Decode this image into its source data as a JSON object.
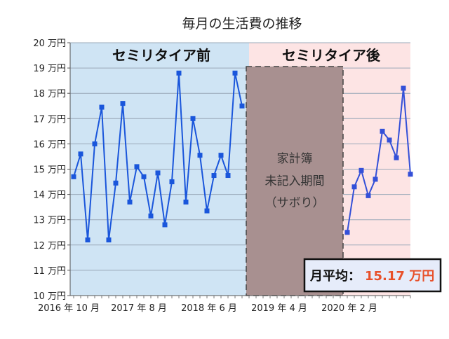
{
  "chart_data": {
    "type": "line",
    "title": "毎月の生活費の推移",
    "ylim": [
      10,
      20
    ],
    "yticks": [
      "10 万円",
      "11 万円",
      "12 万円",
      "13 万円",
      "14 万円",
      "15 万円",
      "16 万円",
      "17 万円",
      "18 万円",
      "19 万円",
      "20 万円"
    ],
    "xticks": [
      "2016 年 10 月",
      "2017 年 8 月",
      "2018 年 6 月",
      "2019 年 4 月",
      "2020 年 2 月"
    ],
    "grid": true,
    "series": [
      {
        "x_start": "2016-10",
        "values": [
          14.7,
          15.6,
          12.2,
          16.0,
          17.45,
          12.2,
          14.45,
          17.6,
          13.7,
          15.1,
          14.7,
          13.15,
          14.85,
          12.8,
          14.5,
          18.8,
          13.7,
          17.0,
          15.55,
          13.35,
          14.75,
          15.55,
          14.75,
          18.8,
          17.5
        ]
      },
      {
        "x_start": "2020-01",
        "values": [
          12.5,
          14.3,
          14.95,
          13.95,
          14.6,
          16.5,
          16.15,
          15.45,
          18.2,
          14.8
        ]
      }
    ],
    "regions": [
      {
        "label": "セミリタイア前",
        "color": "#cfe4f4"
      },
      {
        "label": "セミリタイア後",
        "color": "#fde4e4"
      }
    ],
    "gap_box": {
      "lines": [
        "家計簿",
        "未記入期間",
        "（サボり）"
      ],
      "color": "#a89090"
    },
    "average_box": {
      "label": "月平均：",
      "value": "15.17 万円",
      "value_color": "#e8502a"
    },
    "line_color": "#1a56db"
  }
}
